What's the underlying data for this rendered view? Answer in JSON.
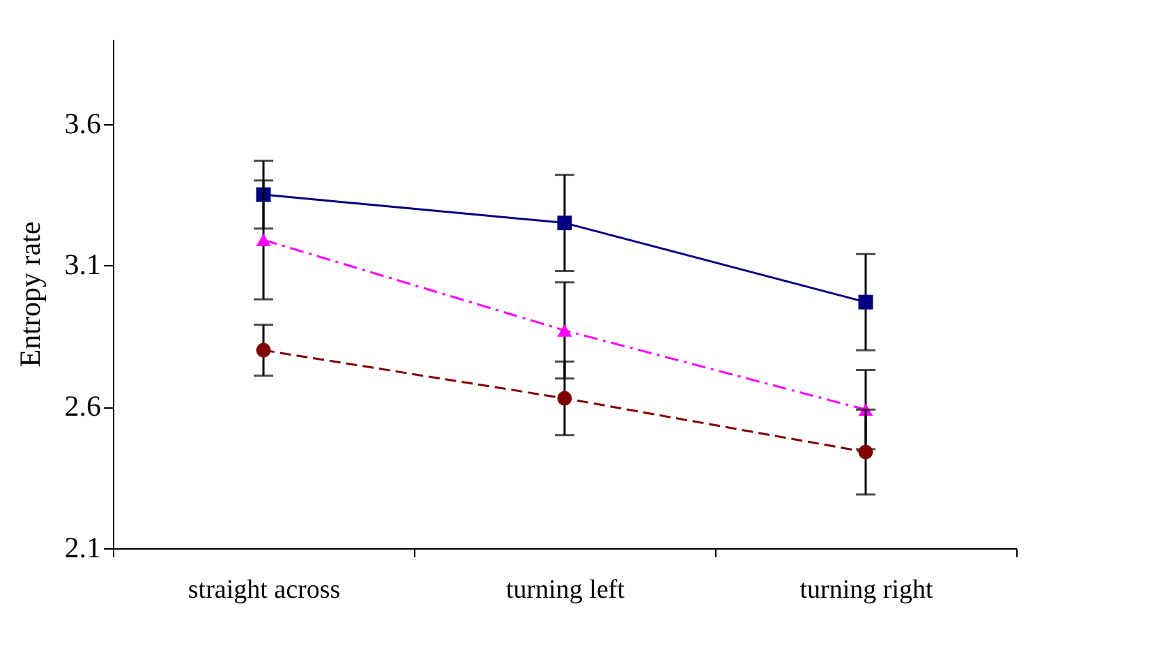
{
  "chart_data": {
    "type": "line",
    "ylabel": "Entropy rate",
    "categories": [
      "straight across",
      "turning left",
      "turning right"
    ],
    "ylim": [
      2.1,
      3.9
    ],
    "yticks": [
      2.1,
      2.6,
      3.1,
      3.6
    ],
    "grid": false,
    "series": [
      {
        "color": "#000080",
        "marker": "square",
        "line_style": "solid",
        "values": [
          3.35,
          3.25,
          2.97
        ],
        "errors": [
          0.12,
          0.17,
          0.17
        ]
      },
      {
        "color": "#ff00ff",
        "marker": "triangle",
        "line_style": "dashdot",
        "values": [
          3.19,
          2.87,
          2.59
        ],
        "errors": [
          0.21,
          0.17,
          0.14
        ]
      },
      {
        "color": "#800000",
        "marker": "circle",
        "line_style": "dashed",
        "values": [
          2.8,
          2.63,
          2.44
        ],
        "errors": [
          0.09,
          0.13,
          0.15
        ]
      }
    ]
  }
}
